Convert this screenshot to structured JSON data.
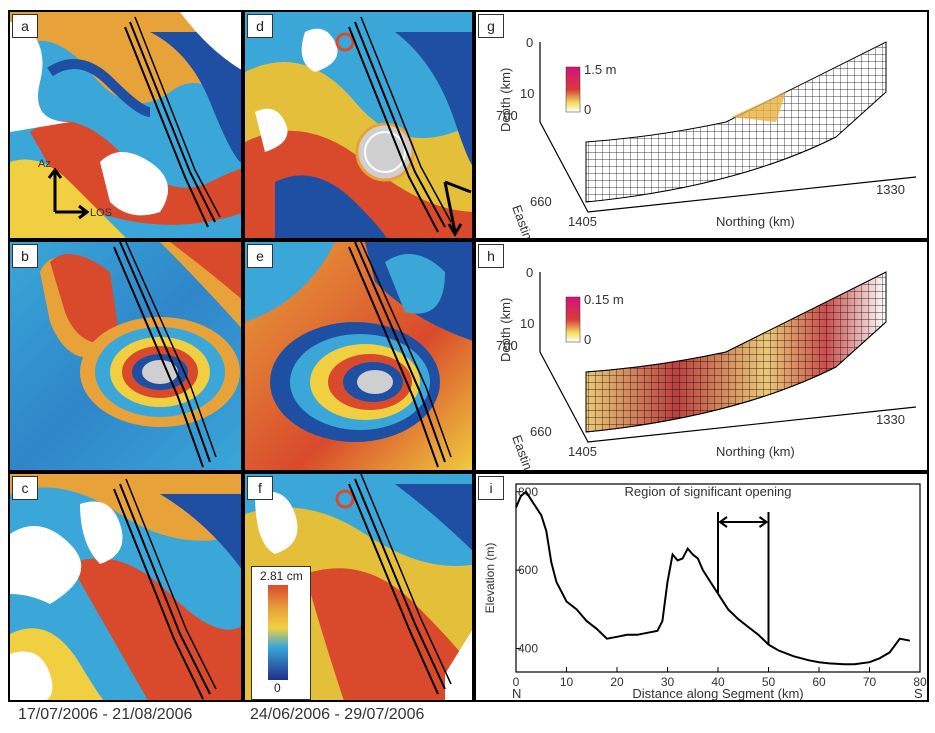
{
  "panels": {
    "a": "a",
    "b": "b",
    "c": "c",
    "d": "d",
    "e": "e",
    "f": "f",
    "g": "g",
    "h": "h",
    "i": "i"
  },
  "arrows": {
    "az": "Az",
    "los": "LOS"
  },
  "colorbar": {
    "max": "2.81 cm",
    "min": "0"
  },
  "panel_g": {
    "scale_max": "1.5 m",
    "scale_min": "0",
    "depth_label": "Depth (km)",
    "depth_top": "0",
    "depth_mid": "10",
    "easting_label": "Easting (km)",
    "easting_top": "700",
    "easting_bottom": "660",
    "northing_label": "Northing (km)",
    "northing_left": "1405",
    "northing_right": "1330"
  },
  "panel_h": {
    "scale_max": "0.15 m",
    "scale_min": "0",
    "depth_label": "Depth (km)",
    "depth_top": "0",
    "depth_mid": "10",
    "easting_label": "Easting (km)",
    "easting_top": "700",
    "easting_bottom": "660",
    "northing_label": "Northing (km)",
    "northing_left": "1405",
    "northing_right": "1330"
  },
  "dates": {
    "left": "17/07/2006 - 21/08/2006",
    "right": "24/06/2006 - 29/07/2006"
  },
  "chart_data": {
    "type": "line",
    "title": "Region of significant opening",
    "xlabel": "Distance along Segment (km)",
    "ylabel": "Elevation (m)",
    "xlim": [
      0,
      80
    ],
    "ylim": [
      340,
      820
    ],
    "x_ticks": [
      "0",
      "10",
      "20",
      "30",
      "40",
      "50",
      "60",
      "70",
      "80"
    ],
    "y_ticks": [
      "400",
      "600",
      "800"
    ],
    "end_left": "N",
    "end_right": "S",
    "opening_region": [
      40,
      50
    ],
    "x": [
      0,
      1,
      2,
      3,
      4,
      5,
      6,
      7,
      8,
      9,
      10,
      12,
      14,
      16,
      18,
      20,
      22,
      24,
      26,
      28,
      29,
      30,
      31,
      32,
      33,
      34,
      35,
      36,
      37,
      38,
      39,
      40,
      42,
      44,
      46,
      48,
      50,
      52,
      55,
      58,
      60,
      62,
      65,
      67,
      70,
      72,
      74,
      76,
      78
    ],
    "y": [
      760,
      790,
      800,
      780,
      760,
      740,
      700,
      620,
      570,
      545,
      520,
      500,
      470,
      450,
      425,
      430,
      435,
      435,
      440,
      445,
      470,
      570,
      640,
      625,
      630,
      655,
      640,
      630,
      600,
      580,
      560,
      540,
      500,
      475,
      455,
      435,
      410,
      395,
      380,
      370,
      365,
      362,
      360,
      360,
      365,
      375,
      390,
      425,
      420
    ]
  }
}
